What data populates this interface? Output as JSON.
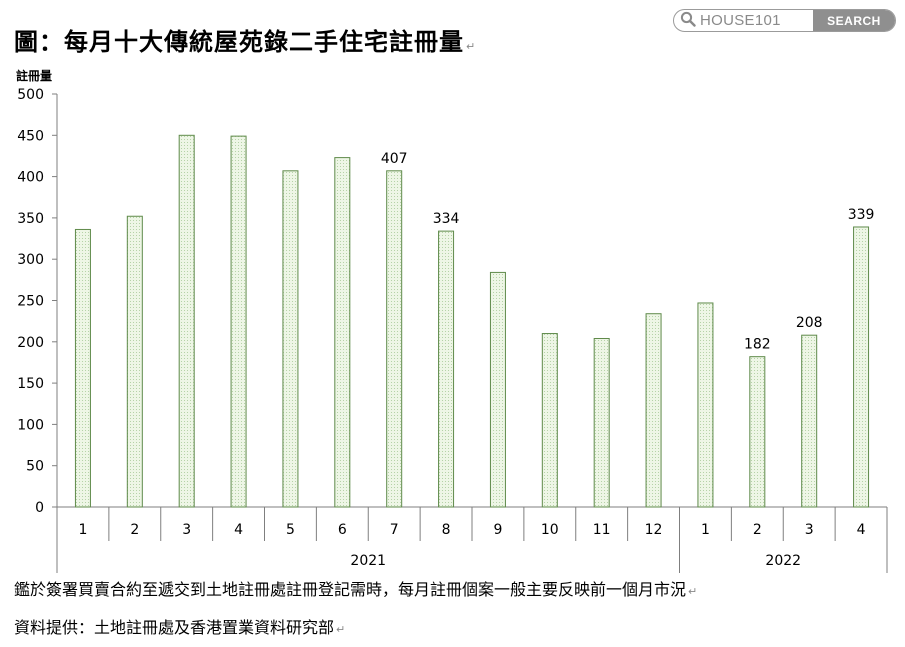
{
  "title": "圖：每月十大傳統屋苑錄二手住宅註冊量",
  "para_mark": "↵",
  "search": {
    "placeholder": "HOUSE101",
    "button_label": "SEARCH"
  },
  "chart_data": {
    "type": "bar",
    "ylabel": "註冊量",
    "ylim": [
      0,
      500
    ],
    "yticks": [
      0,
      50,
      100,
      150,
      200,
      250,
      300,
      350,
      400,
      450,
      500
    ],
    "categories": [
      "1",
      "2",
      "3",
      "4",
      "5",
      "6",
      "7",
      "8",
      "9",
      "10",
      "11",
      "12",
      "1",
      "2",
      "3",
      "4"
    ],
    "groups": [
      {
        "label": "2021",
        "count": 12
      },
      {
        "label": "2022",
        "count": 4
      }
    ],
    "values": [
      336,
      352,
      450,
      449,
      407,
      423,
      407,
      334,
      284,
      210,
      204,
      234,
      247,
      182,
      208,
      339
    ],
    "data_labels": [
      null,
      null,
      null,
      null,
      null,
      null,
      "407",
      "334",
      null,
      null,
      null,
      null,
      null,
      "182",
      "208",
      "339"
    ],
    "bar_color": "#e8f3df",
    "bar_edge": "#5f8a4a"
  },
  "notes": [
    "鑑於簽署買賣合約至遞交到土地註冊處註冊登記需時，每月註冊個案一般主要反映前一個月市況",
    "資料提供：土地註冊處及香港置業資料研究部"
  ]
}
